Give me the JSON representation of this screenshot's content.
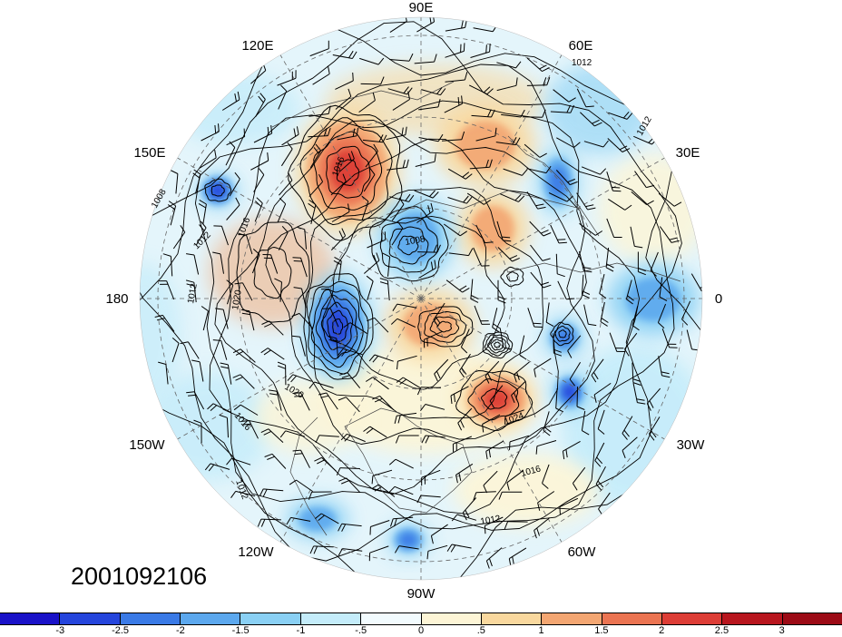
{
  "title_stamp": "2001092106",
  "longitude_labels": {
    "top": "90E",
    "upper_left": "120E",
    "upper_right": "60E",
    "left_upper": "150E",
    "right_upper": "30E",
    "left": "180",
    "right": "0",
    "left_lower": "150W",
    "right_lower": "30W",
    "lower_left": "120W",
    "lower_right": "60W",
    "bottom": "90W"
  },
  "contour_labels": [
    "1012",
    "1012",
    "1016",
    "1008",
    "1012",
    "1016",
    "1008",
    "1020",
    "1020",
    "1016",
    "1012",
    "1016",
    "1024",
    "1012",
    "1012"
  ],
  "colorbar": {
    "colors": [
      "#1a12c8",
      "#2545dc",
      "#3a7ae6",
      "#5ca8ee",
      "#8ad0f4",
      "#c4ecfa",
      "#f2fbfe",
      "#fdf5d6",
      "#f9d89e",
      "#f3a672",
      "#eb7452",
      "#dd3d36",
      "#b8161e",
      "#9c0b16"
    ],
    "tick_labels": [
      "-3",
      "-2.5",
      "-2",
      "-1.5",
      "-1",
      "-.5",
      "0",
      ".5",
      "1",
      "1.5",
      "2",
      "2.5",
      "3"
    ]
  },
  "anomaly_centers": [
    {
      "sign": "positive",
      "strength": 2.5
    },
    {
      "sign": "positive",
      "strength": 1.5
    },
    {
      "sign": "positive",
      "strength": 1.5
    },
    {
      "sign": "positive",
      "strength": 2.5
    },
    {
      "sign": "positive",
      "strength": 1.5
    },
    {
      "sign": "negative",
      "strength": 2.5
    },
    {
      "sign": "negative",
      "strength": 2.5
    },
    {
      "sign": "negative",
      "strength": 2.0
    },
    {
      "sign": "negative",
      "strength": 1.5
    },
    {
      "sign": "negative",
      "strength": 2.5
    },
    {
      "sign": "negative",
      "strength": 2.0
    },
    {
      "sign": "negative",
      "strength": 2.0
    },
    {
      "sign": "negative",
      "strength": 1.5
    },
    {
      "sign": "negative",
      "strength": 1.5
    }
  ]
}
